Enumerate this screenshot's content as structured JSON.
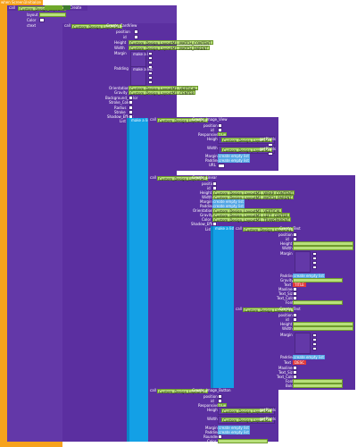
{
  "app": {
    "top_event": {
      "when": "when",
      "component": "Screen1",
      "event": ".Initialize",
      "do": "do"
    },
    "call_main": {
      "call": "call",
      "component": "Custom_Design_LayoutM",
      "method": "Create"
    },
    "params_top": [
      "layout",
      "Color",
      "ctext"
    ]
  },
  "block1": {
    "call": "call",
    "component": "Custom_Design_LayoutM1",
    "method": ".Create_CardView",
    "params": [
      "position",
      "id",
      "Height",
      "Width",
      "Margin",
      "Padding",
      "Orientation",
      "Gravity",
      "Background_Color",
      "Stroke_Color",
      "Radius",
      "Stroke",
      "Shadow_Effect",
      "List"
    ],
    "height_value": "Custom_Design_LayoutM1  .MATCH_CONTENT",
    "width_value": "Custom_Design_LayoutM1  .MATCH_PARENT",
    "orientation_value": "Custom_Design_LayoutM1  .VERTICAL",
    "gravity_value": "Custom_Design_LayoutM1  .CENTER",
    "make_list": "make a list",
    "create_empty": "create empty list"
  },
  "block2": {
    "call": "call",
    "component": "Custom_Design_LayoutM1",
    "method": ".Create_Image_View",
    "params": [
      "position",
      "id",
      "Responsive",
      "Height",
      "Width",
      "Margin",
      "Padding",
      "URL"
    ],
    "get_path_1": "getPixels",
    "get_path_2": "getPixels",
    "responsive_value": "true",
    "create_empty": "create empty list"
  },
  "block3": {
    "call": "call",
    "component": "Custom_Design_LayoutM1",
    "method": ".Create_Linear",
    "params": [
      "position",
      "id",
      "Height",
      "Width",
      "Margin",
      "Padding",
      "Orientation",
      "Gravity",
      "Color",
      "Shadow_Effect",
      "List"
    ],
    "height_value": "Custom_Design_LayoutM1  .WRAP_CONTENT",
    "width_value": "Custom_Design_LayoutM1  .MATCH_PARENT",
    "orientation_value": "Custom_Design_LayoutM1  .VERTICAL",
    "gravity_value": "Custom_Design_LayoutM1  .LEFT_CENTER",
    "color_value": "Custom_Design_LayoutM1  .TRANSPARENT",
    "create_empty": "create empty list"
  },
  "block4": {
    "call": "call",
    "component": "Custom_Design_LayoutM1",
    "method": ".Create_Text",
    "params": [
      "position",
      "id",
      "Height",
      "Width",
      "Margin",
      "Padding",
      "Gravity",
      "Text",
      "Maxlines",
      "Text_Size",
      "Text_Color",
      "Font",
      "Bold"
    ],
    "text_value": "TITLE",
    "create_empty": "create empty list"
  },
  "block5": {
    "call": "call",
    "component": "Custom_Design_LayoutM1",
    "method": ".Create_Text",
    "params": [
      "position",
      "id",
      "Height",
      "Width",
      "Margin",
      "Padding",
      "Gravity",
      "Text",
      "Maxlines",
      "Text_Size",
      "Text_Color",
      "Font",
      "Bold"
    ],
    "text_value": "DESC",
    "create_empty": "create empty list"
  },
  "block6": {
    "call": "call",
    "component": "Custom_Design_LayoutM1",
    "method": ".Create_Image_Button",
    "params": [
      "position",
      "id",
      "Responsive",
      "Height",
      "Width",
      "Margin",
      "Padding",
      "Rounded",
      "Color"
    ],
    "get_path_1": "getPixels",
    "get_path_2": "getPixels",
    "responsive_value": "true",
    "create_empty": "create empty list"
  },
  "colors": {
    "orange": "#f7a21c",
    "purple": "#6338a8",
    "cyan": "#13a0e6",
    "green": "#6fa82a",
    "lime": "#b8e07a",
    "red": "#e03a3a"
  }
}
